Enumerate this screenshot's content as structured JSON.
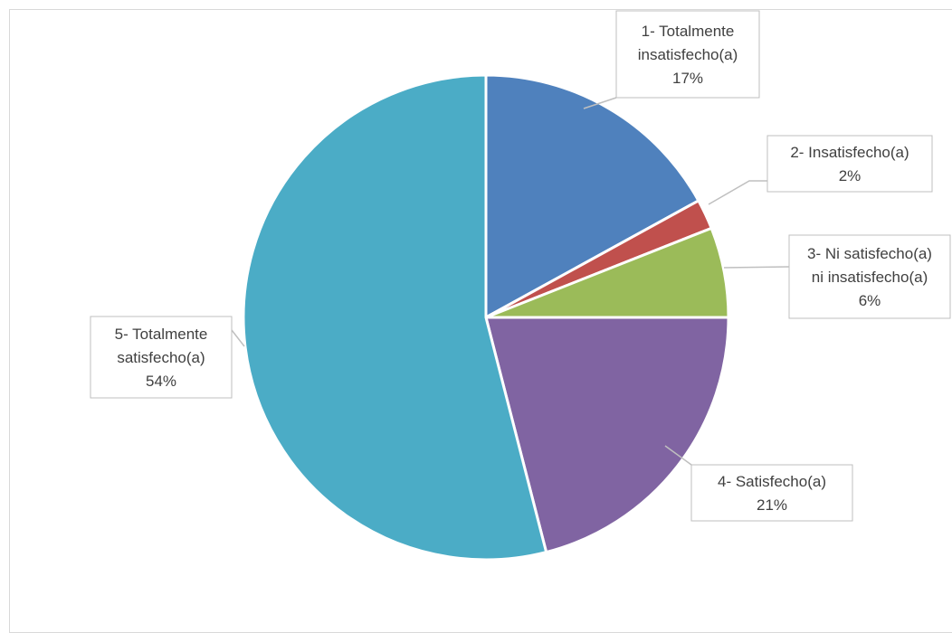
{
  "chart_data": {
    "type": "pie",
    "title": "",
    "categories": [
      "1- Totalmente insatisfecho(a)",
      "2- Insatisfecho(a)",
      "3- Ni satisfecho(a) ni insatisfecho(a)",
      "4- Satisfecho(a)",
      "5- Totalmente satisfecho(a)"
    ],
    "values": [
      17,
      2,
      6,
      21,
      54
    ],
    "value_labels": [
      "17%",
      "2%",
      "6%",
      "21%",
      "54%"
    ],
    "label_lines": [
      [
        "1- Totalmente",
        "insatisfecho(a)",
        "17%"
      ],
      [
        "2- Insatisfecho(a)",
        "2%"
      ],
      [
        "3- Ni satisfecho(a)",
        "ni insatisfecho(a)",
        "6%"
      ],
      [
        "4- Satisfecho(a)",
        "21%"
      ],
      [
        "5- Totalmente",
        "satisfecho(a)",
        "54%"
      ]
    ],
    "colors": [
      "#4f81bd",
      "#c0504d",
      "#9bbb59",
      "#8064a2",
      "#4bacc6"
    ],
    "start_angle_deg": 0,
    "direction": "clockwise",
    "legend": "none",
    "data_labels": "callouts"
  }
}
